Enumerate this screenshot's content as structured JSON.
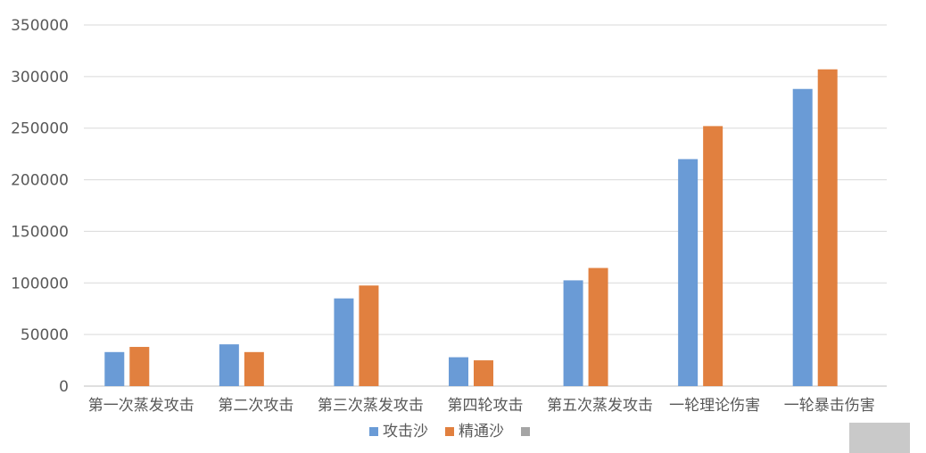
{
  "chart_data": {
    "type": "bar",
    "title": "",
    "categories": [
      "第一次蒸发攻击",
      "第二次攻击",
      "第三次蒸发攻击",
      "第四轮攻击",
      "第五次蒸发攻击",
      "一轮理论伤害",
      "一轮暴击伤害"
    ],
    "series": [
      {
        "name": "攻击沙",
        "color": "#6a9bd6",
        "values": [
          33000,
          40500,
          85000,
          28000,
          102500,
          220000,
          288000
        ]
      },
      {
        "name": "精通沙",
        "color": "#e1803f",
        "values": [
          38000,
          33000,
          97500,
          25000,
          114500,
          252000,
          307000
        ]
      },
      {
        "name": "",
        "color": "#a5a5a5",
        "values": [
          0,
          0,
          0,
          0,
          0,
          0,
          0
        ]
      }
    ],
    "ylim": [
      0,
      350000
    ],
    "yticks": [
      0,
      50000,
      100000,
      150000,
      200000,
      250000,
      300000,
      350000
    ],
    "grid": true,
    "legend_position": "bottom"
  }
}
